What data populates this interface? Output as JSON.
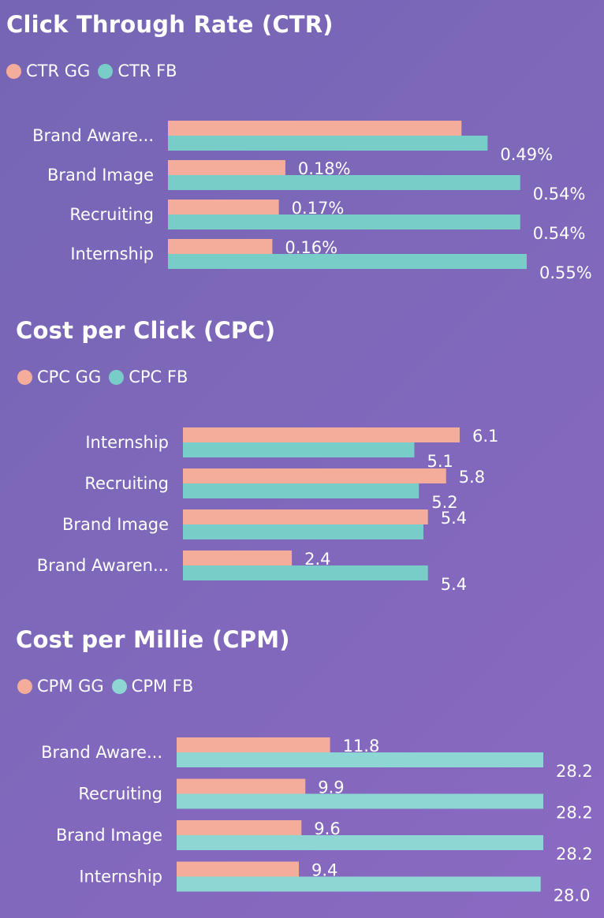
{
  "colors": {
    "gg": "#f4ad9b",
    "fb": "#79cdc8",
    "fb_cpm": "#8dd6d3"
  },
  "chart_data": [
    {
      "type": "bar",
      "orientation": "horizontal",
      "title": "Click Through Rate (CTR)",
      "categories": [
        "Brand Aware...",
        "Brand Image",
        "Recruiting",
        "Internship"
      ],
      "series": [
        {
          "name": "CTR GG",
          "values": [
            0.45,
            0.18,
            0.17,
            0.16
          ],
          "labels": [
            "",
            "0.18%",
            "0.17%",
            "0.16%"
          ]
        },
        {
          "name": "CTR FB",
          "values": [
            0.49,
            0.54,
            0.54,
            0.55
          ],
          "labels": [
            "0.49%",
            "0.54%",
            "0.54%",
            "0.55%"
          ]
        }
      ],
      "xlim": [
        0,
        0.55
      ],
      "legend": "top-left",
      "grid": false
    },
    {
      "type": "bar",
      "orientation": "horizontal",
      "title": "Cost per Click (CPC)",
      "categories": [
        "Internship",
        "Recruiting",
        "Brand Image",
        "Brand Awaren..."
      ],
      "series": [
        {
          "name": "CPC GG",
          "values": [
            6.1,
            5.8,
            5.4,
            2.4
          ],
          "labels": [
            "6.1",
            "5.8",
            "5.4",
            "2.4"
          ]
        },
        {
          "name": "CPC FB",
          "values": [
            5.1,
            5.2,
            5.3,
            5.4
          ],
          "labels": [
            "5.1",
            "5.2",
            "",
            "5.4"
          ]
        }
      ],
      "xlim": [
        0,
        6.1
      ],
      "legend": "top-left",
      "grid": false
    },
    {
      "type": "bar",
      "orientation": "horizontal",
      "title": "Cost per Millie (CPM)",
      "categories": [
        "Brand Aware...",
        "Recruiting",
        "Brand Image",
        "Internship"
      ],
      "series": [
        {
          "name": "CPM GG",
          "values": [
            11.8,
            9.9,
            9.6,
            9.4
          ],
          "labels": [
            "11.8",
            "9.9",
            "9.6",
            "9.4"
          ]
        },
        {
          "name": "CPM FB",
          "values": [
            28.2,
            28.2,
            28.2,
            28.0
          ],
          "labels": [
            "28.2",
            "28.2",
            "28.2",
            "28.0"
          ]
        }
      ],
      "xlim": [
        0,
        28.2
      ],
      "legend": "top-left",
      "grid": false
    }
  ]
}
